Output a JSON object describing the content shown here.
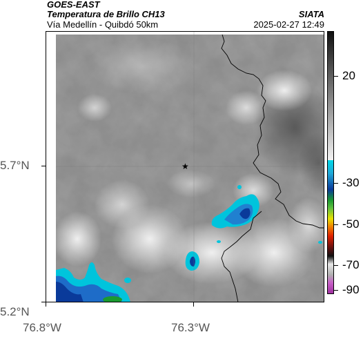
{
  "header": {
    "satellite": "GOES-EAST",
    "product": "Temperatura de Brillo CH13",
    "route": "Vía Medellín - Quibdó 50km",
    "source": "SIATA",
    "datetime": "2025-02-27 12:49"
  },
  "axes": {
    "lat_labels": [
      "5.7°N",
      "5.2°N"
    ],
    "lon_labels": [
      "76.8°W",
      "76.3°W"
    ]
  },
  "colorbar": {
    "ticks": [
      "20",
      "-30",
      "-50",
      "-70",
      "-90"
    ],
    "colors": {
      "warm_dark": "#1a1a1a",
      "warm_light": "#d8d8d8",
      "cold_cyan": "#00c8e0",
      "cold_blue": "#0a3a9a",
      "green": "#1a9a30",
      "yellow": "#e8e000",
      "red": "#e02000",
      "black": "#101010",
      "magenta": "#c040c0"
    }
  },
  "map": {
    "marker_icon": "star-icon",
    "base_color": "#8a8a8a",
    "border_color": "#000000"
  }
}
